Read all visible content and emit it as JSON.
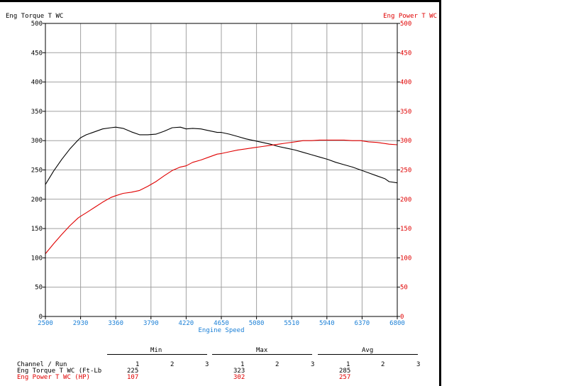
{
  "colors": {
    "torque": "#000000",
    "power": "#e00000",
    "x_axis_text": "#1a7fd6",
    "grid": "#a0a0a0"
  },
  "chart_data": {
    "type": "line",
    "left_axis_title": "Eng Torque T WC",
    "right_axis_title": "Eng Power T WC",
    "xlabel": "Engine Speed",
    "xlim": [
      2500,
      6800
    ],
    "ylim": [
      0,
      500
    ],
    "y_ticks": [
      "0",
      "50",
      "100",
      "150",
      "200",
      "250",
      "300",
      "350",
      "400",
      "450",
      "500"
    ],
    "x_ticks": [
      "2500",
      "2930",
      "3360",
      "3790",
      "4220",
      "4650",
      "5080",
      "5510",
      "5940",
      "6370",
      "6800"
    ],
    "grid": true,
    "series": [
      {
        "name": "Eng Torque T WC",
        "axis": "left",
        "x": [
          2500,
          2600,
          2700,
          2800,
          2900,
          2930,
          3000,
          3100,
          3200,
          3300,
          3360,
          3450,
          3550,
          3650,
          3750,
          3850,
          3950,
          4050,
          4150,
          4220,
          4300,
          4400,
          4500,
          4600,
          4650,
          4750,
          4850,
          4950,
          5050,
          5150,
          5250,
          5350,
          5450,
          5550,
          5650,
          5750,
          5850,
          5950,
          6050,
          6150,
          6250,
          6350,
          6450,
          6550,
          6650,
          6700,
          6800
        ],
        "y": [
          225,
          248,
          268,
          286,
          301,
          305,
          310,
          315,
          320,
          322,
          323,
          321,
          315,
          310,
          310,
          311,
          316,
          322,
          323,
          320,
          321,
          320,
          317,
          314,
          314,
          311,
          307,
          303,
          300,
          297,
          294,
          290,
          287,
          284,
          280,
          276,
          272,
          268,
          263,
          259,
          255,
          250,
          245,
          240,
          235,
          230,
          228
        ]
      },
      {
        "name": "Eng Power T WC",
        "axis": "right",
        "x": [
          2500,
          2600,
          2700,
          2800,
          2900,
          2930,
          3000,
          3100,
          3200,
          3300,
          3360,
          3450,
          3550,
          3650,
          3750,
          3850,
          3950,
          4050,
          4150,
          4220,
          4300,
          4400,
          4500,
          4600,
          4650,
          4750,
          4850,
          4950,
          5050,
          5150,
          5250,
          5350,
          5450,
          5550,
          5650,
          5750,
          5850,
          5950,
          6050,
          6150,
          6250,
          6350,
          6450,
          6550,
          6650,
          6700,
          6800
        ],
        "y": [
          107,
          124,
          140,
          155,
          168,
          171,
          177,
          186,
          195,
          203,
          206,
          210,
          212,
          215,
          222,
          230,
          240,
          249,
          255,
          257,
          263,
          267,
          272,
          277,
          278,
          281,
          284,
          286,
          288,
          290,
          292,
          294,
          296,
          298,
          300,
          300,
          301,
          301,
          301,
          301,
          300,
          300,
          298,
          297,
          295,
          294,
          293
        ]
      }
    ]
  },
  "stats": {
    "headers": {
      "min": "Min",
      "max": "Max",
      "avg": "Avg"
    },
    "channel_label": "Channel / Run",
    "run_numbers": [
      "1",
      "2",
      "3"
    ],
    "rows": [
      {
        "label": "Eng Torque T WC (Ft-Lb",
        "min": "225",
        "max": "323",
        "avg": "285"
      },
      {
        "label": "Eng Power T WC (HP)",
        "min": "107",
        "max": "302",
        "avg": "257"
      }
    ]
  }
}
